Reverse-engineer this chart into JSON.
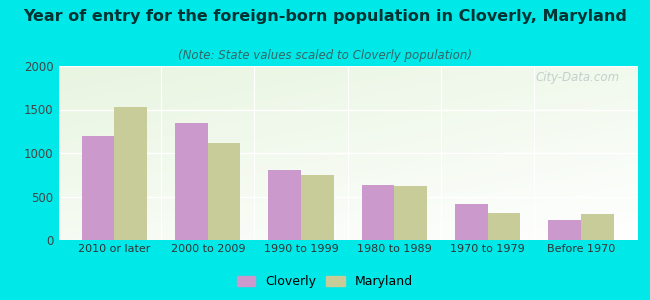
{
  "categories": [
    "2010 or later",
    "2000 to 2009",
    "1990 to 1999",
    "1980 to 1989",
    "1970 to 1979",
    "Before 1970"
  ],
  "cloverly_values": [
    1200,
    1350,
    800,
    630,
    410,
    230
  ],
  "maryland_values": [
    1530,
    1110,
    750,
    620,
    310,
    300
  ],
  "cloverly_color": "#cc99cc",
  "maryland_color": "#c8cc99",
  "title": "Year of entry for the foreign-born population in Cloverly, Maryland",
  "subtitle": "(Note: State values scaled to Cloverly population)",
  "title_fontsize": 11.5,
  "subtitle_fontsize": 8.5,
  "ylim": [
    0,
    2000
  ],
  "yticks": [
    0,
    500,
    1000,
    1500,
    2000
  ],
  "background_outer": "#00e8e8",
  "bar_width": 0.35,
  "legend_labels": [
    "Cloverly",
    "Maryland"
  ],
  "watermark": "City-Data.com"
}
